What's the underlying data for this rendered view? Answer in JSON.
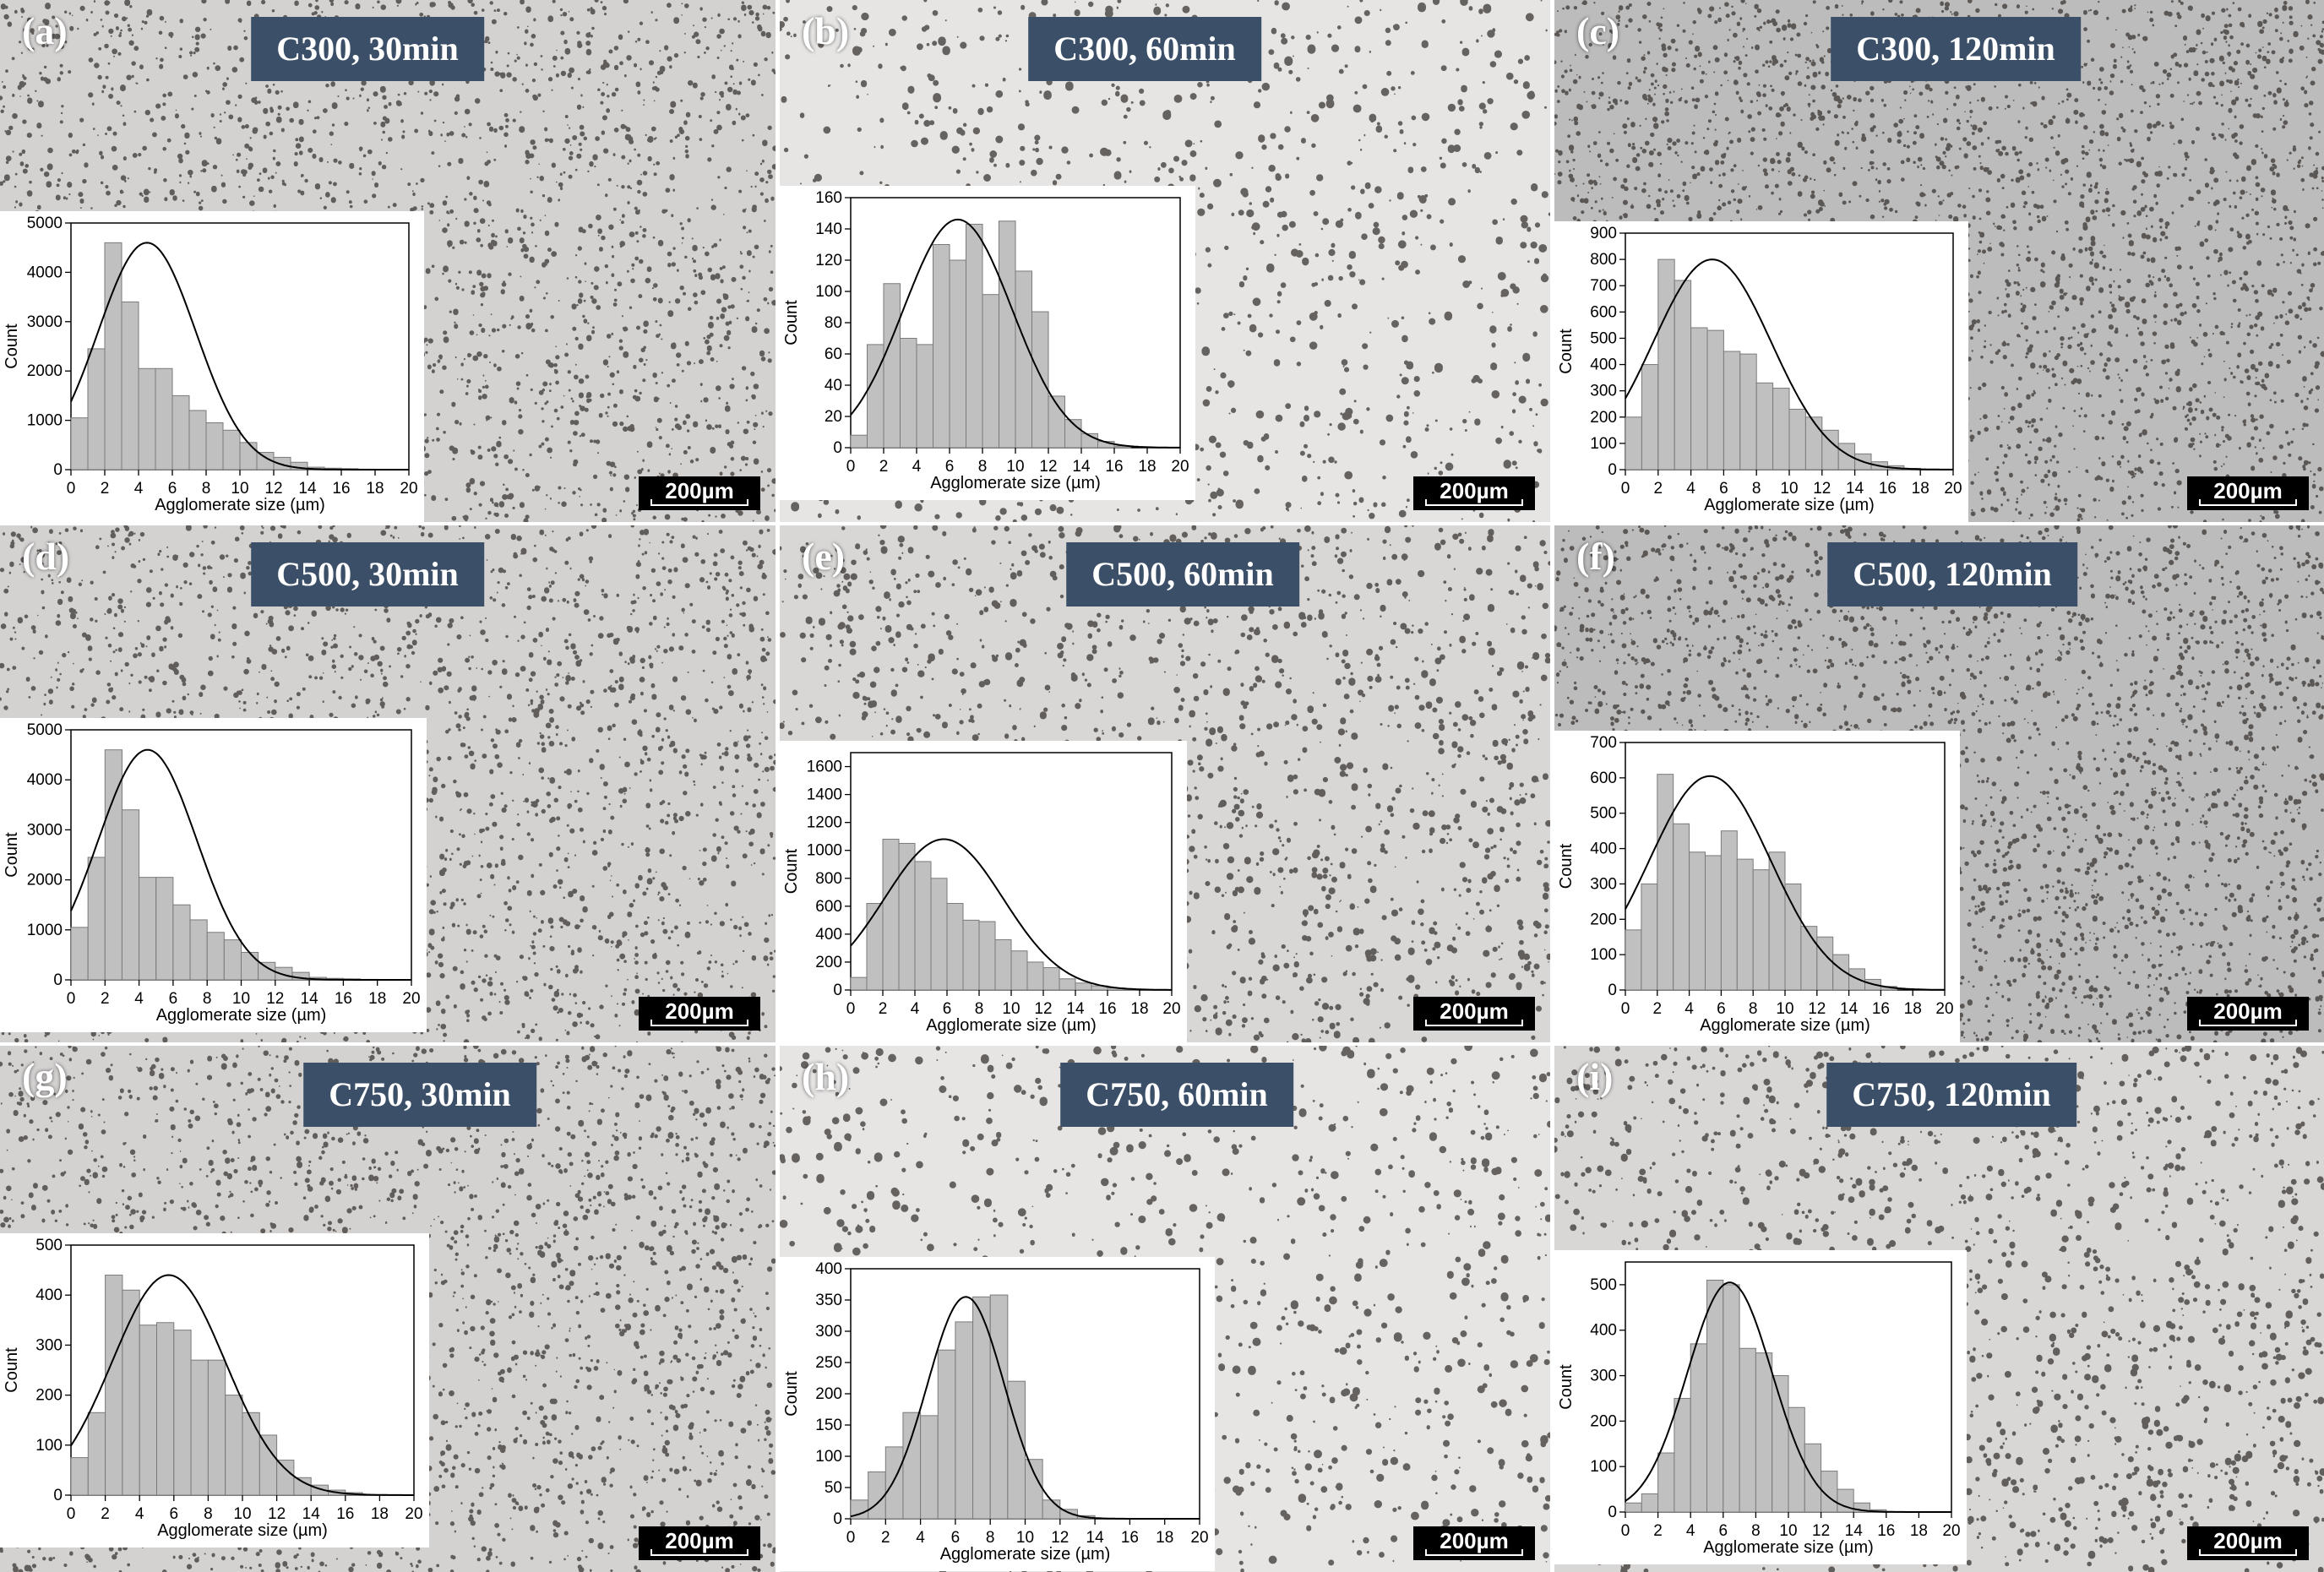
{
  "figure": {
    "panels": [
      {
        "letter": "(a)",
        "title": "C300, 30min",
        "scale_bar": "200µm",
        "background": "dense-fine"
      },
      {
        "letter": "(b)",
        "title": "C300, 60min",
        "scale_bar": "200µm",
        "background": "sparse-light"
      },
      {
        "letter": "(c)",
        "title": "C300, 120min",
        "scale_bar": "200µm",
        "background": "dense-dark"
      },
      {
        "letter": "(d)",
        "title": "C500, 30min",
        "scale_bar": "200µm",
        "background": "dense-fine"
      },
      {
        "letter": "(e)",
        "title": "C500, 60min",
        "scale_bar": "200µm",
        "background": "medium"
      },
      {
        "letter": "(f)",
        "title": "C500, 120min",
        "scale_bar": "200µm",
        "background": "dense-dark"
      },
      {
        "letter": "(g)",
        "title": "C750, 30min",
        "scale_bar": "200µm",
        "background": "dense-fine"
      },
      {
        "letter": "(h)",
        "title": "C750, 60min",
        "scale_bar": "200µm",
        "background": "sparse-light"
      },
      {
        "letter": "(i)",
        "title": "C750, 120min",
        "scale_bar": "200µm",
        "background": "medium"
      }
    ]
  },
  "colors": {
    "badge": "#3b5068",
    "bar_fill": "#c0c0c0",
    "bar_stroke": "#7a7a7a",
    "fit_line": "#000000"
  },
  "chart_data": [
    {
      "type": "bar",
      "xlabel": "Agglomerate size (µm)",
      "ylabel": "Count",
      "xlim": [
        0,
        20
      ],
      "ylim": [
        0,
        5000
      ],
      "xticks": [
        0,
        2,
        4,
        6,
        8,
        10,
        12,
        14,
        16,
        18,
        20
      ],
      "yticks": [
        0,
        1000,
        2000,
        3000,
        4000,
        5000
      ],
      "bin_width": 1,
      "bin_start": 0,
      "values": [
        1050,
        2450,
        4600,
        3400,
        2050,
        2050,
        1500,
        1200,
        950,
        800,
        550,
        350,
        250,
        150,
        50,
        30,
        20,
        10,
        5,
        0
      ],
      "fit": {
        "type": "normal",
        "mean": 4.5,
        "sd": 2.9,
        "peak": 4600
      }
    },
    {
      "type": "bar",
      "xlabel": "Agglomerate size (µm)",
      "ylabel": "Count",
      "xlim": [
        0,
        20
      ],
      "ylim": [
        0,
        160
      ],
      "xticks": [
        0,
        2,
        4,
        6,
        8,
        10,
        12,
        14,
        16,
        18,
        20
      ],
      "yticks": [
        0,
        20,
        40,
        60,
        80,
        100,
        120,
        140,
        160
      ],
      "bin_width": 1,
      "bin_start": 0,
      "values": [
        8,
        66,
        105,
        70,
        66,
        130,
        120,
        143,
        98,
        145,
        113,
        87,
        33,
        18,
        9,
        4,
        1,
        0,
        0,
        0
      ],
      "fit": {
        "type": "normal",
        "mean": 6.5,
        "sd": 3.3,
        "peak": 146
      }
    },
    {
      "type": "bar",
      "xlabel": "Agglomerate size (µm)",
      "ylabel": "Count",
      "xlim": [
        0,
        20
      ],
      "ylim": [
        0,
        900
      ],
      "xticks": [
        0,
        2,
        4,
        6,
        8,
        10,
        12,
        14,
        16,
        18,
        20
      ],
      "yticks": [
        0,
        100,
        200,
        300,
        400,
        500,
        600,
        700,
        800,
        900
      ],
      "bin_width": 1,
      "bin_start": 0,
      "values": [
        200,
        400,
        800,
        720,
        540,
        530,
        450,
        440,
        330,
        310,
        230,
        200,
        150,
        100,
        60,
        30,
        15,
        5,
        0,
        0
      ],
      "fit": {
        "type": "normal",
        "mean": 5.3,
        "sd": 3.6,
        "peak": 800
      }
    },
    {
      "type": "bar",
      "xlabel": "Agglomerate size (µm)",
      "ylabel": "Count",
      "xlim": [
        0,
        20
      ],
      "ylim": [
        0,
        5000
      ],
      "xticks": [
        0,
        2,
        4,
        6,
        8,
        10,
        12,
        14,
        16,
        18,
        20
      ],
      "yticks": [
        0,
        1000,
        2000,
        3000,
        4000,
        5000
      ],
      "bin_width": 1,
      "bin_start": 0,
      "values": [
        1050,
        2450,
        4600,
        3400,
        2050,
        2050,
        1500,
        1200,
        950,
        800,
        550,
        350,
        250,
        150,
        50,
        30,
        20,
        10,
        5,
        0
      ],
      "fit": {
        "type": "normal",
        "mean": 4.5,
        "sd": 2.9,
        "peak": 4600
      }
    },
    {
      "type": "bar",
      "xlabel": "Agglomerate size (µm)",
      "ylabel": "Count",
      "xlim": [
        0,
        20
      ],
      "ylim": [
        0,
        1700
      ],
      "xticks": [
        0,
        2,
        4,
        6,
        8,
        10,
        12,
        14,
        16,
        18,
        20
      ],
      "yticks": [
        0,
        200,
        400,
        600,
        800,
        1000,
        1200,
        1400,
        1600
      ],
      "bin_width": 1,
      "bin_start": 0,
      "values": [
        90,
        620,
        1080,
        1050,
        920,
        800,
        620,
        500,
        490,
        360,
        280,
        200,
        160,
        80,
        50,
        30,
        15,
        5,
        0,
        0
      ],
      "fit": {
        "type": "normal",
        "mean": 5.8,
        "sd": 3.7,
        "peak": 1080
      }
    },
    {
      "type": "bar",
      "xlabel": "Agglomerate size (µm)",
      "ylabel": "Count",
      "xlim": [
        0,
        20
      ],
      "ylim": [
        0,
        700
      ],
      "xticks": [
        0,
        2,
        4,
        6,
        8,
        10,
        12,
        14,
        16,
        18,
        20
      ],
      "yticks": [
        0,
        100,
        200,
        300,
        400,
        500,
        600,
        700
      ],
      "bin_width": 1,
      "bin_start": 0,
      "values": [
        170,
        300,
        610,
        470,
        390,
        380,
        450,
        370,
        340,
        390,
        300,
        180,
        150,
        100,
        60,
        30,
        10,
        0,
        0,
        0
      ],
      "fit": {
        "type": "normal",
        "mean": 5.3,
        "sd": 3.8,
        "peak": 605
      }
    },
    {
      "type": "bar",
      "xlabel": "Agglomerate size (µm)",
      "ylabel": "Count",
      "xlim": [
        0,
        20
      ],
      "ylim": [
        0,
        500
      ],
      "xticks": [
        0,
        2,
        4,
        6,
        8,
        10,
        12,
        14,
        16,
        18,
        20
      ],
      "yticks": [
        0,
        100,
        200,
        300,
        400,
        500
      ],
      "bin_width": 1,
      "bin_start": 0,
      "values": [
        75,
        165,
        440,
        410,
        340,
        345,
        330,
        270,
        270,
        200,
        165,
        120,
        70,
        35,
        20,
        10,
        5,
        0,
        0,
        0
      ],
      "fit": {
        "type": "normal",
        "mean": 5.7,
        "sd": 3.3,
        "peak": 440
      }
    },
    {
      "type": "bar",
      "xlabel": "Agglomerate size (µm)",
      "ylabel": "Count",
      "xlim": [
        0,
        20
      ],
      "ylim": [
        0,
        400
      ],
      "xticks": [
        0,
        2,
        4,
        6,
        8,
        10,
        12,
        14,
        16,
        18,
        20
      ],
      "yticks": [
        0,
        50,
        100,
        150,
        200,
        250,
        300,
        350,
        400
      ],
      "bin_width": 1,
      "bin_start": 0,
      "values": [
        30,
        75,
        115,
        170,
        165,
        270,
        315,
        355,
        358,
        220,
        95,
        30,
        15,
        5,
        0,
        0,
        0,
        0,
        0,
        0
      ],
      "fit": {
        "type": "normal",
        "mean": 6.6,
        "sd": 2.2,
        "peak": 355
      }
    },
    {
      "type": "bar",
      "xlabel": "Agglomerate size (µm)",
      "ylabel": "Count",
      "xlim": [
        0,
        20
      ],
      "ylim": [
        0,
        550
      ],
      "xticks": [
        0,
        2,
        4,
        6,
        8,
        10,
        12,
        14,
        16,
        18,
        20
      ],
      "yticks": [
        0,
        100,
        200,
        300,
        400,
        500
      ],
      "bin_width": 1,
      "bin_start": 0,
      "values": [
        20,
        40,
        130,
        250,
        370,
        510,
        500,
        360,
        350,
        300,
        230,
        150,
        90,
        50,
        20,
        5,
        0,
        0,
        0,
        0
      ],
      "fit": {
        "type": "normal",
        "mean": 6.4,
        "sd": 2.6,
        "peak": 505
      }
    }
  ]
}
